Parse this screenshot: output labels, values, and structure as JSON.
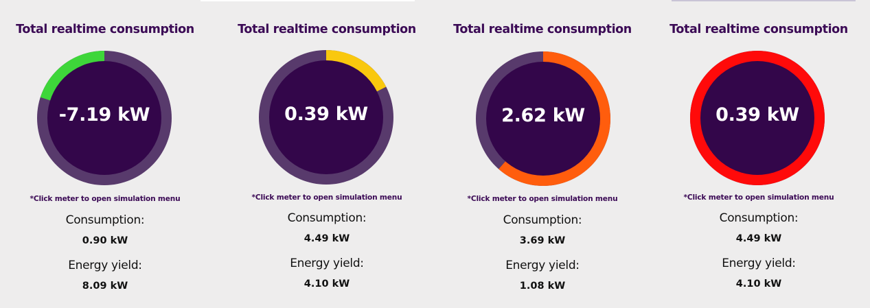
{
  "colors": {
    "background": "#eeeded",
    "title": "#3b0a55",
    "meter_track": "#583a6c",
    "meter_center": "#33064a"
  },
  "meters": [
    {
      "title": "Total realtime consumption",
      "value_text": "-7.19 kW",
      "arc_color": "#3ed63a",
      "arc_fraction": 0.2,
      "arc_direction": "counterclockwise",
      "hint": "*Click meter to open simulation menu",
      "consumption_label": "Consumption:",
      "consumption_value": "0.90 kW",
      "yield_label": "Energy yield:",
      "yield_value": "8.09 kW"
    },
    {
      "title": "Total realtime consumption",
      "value_text": "0.39 kW",
      "arc_color": "#f9c80e",
      "arc_fraction": 0.175,
      "arc_direction": "clockwise",
      "hint": "*Click meter to open simulation menu",
      "consumption_label": "Consumption:",
      "consumption_value": "4.49 kW",
      "yield_label": "Energy yield:",
      "yield_value": "4.10 kW"
    },
    {
      "title": "Total realtime consumption",
      "value_text": "2.62 kW",
      "arc_color": "#ff5d0d",
      "arc_fraction": 0.615,
      "arc_direction": "clockwise",
      "hint": "*Click meter to open simulation menu",
      "consumption_label": "Consumption:",
      "consumption_value": "3.69 kW",
      "yield_label": "Energy yield:",
      "yield_value": "1.08 kW"
    },
    {
      "title": "Total realtime consumption",
      "value_text": "0.39 kW",
      "arc_color": "#ff0a0a",
      "arc_fraction": 1.0,
      "arc_direction": "clockwise",
      "hint": "*Click meter to open simulation menu",
      "consumption_label": "Consumption:",
      "consumption_value": "4.49 kW",
      "yield_label": "Energy yield:",
      "yield_value": "4.10 kW"
    }
  ]
}
